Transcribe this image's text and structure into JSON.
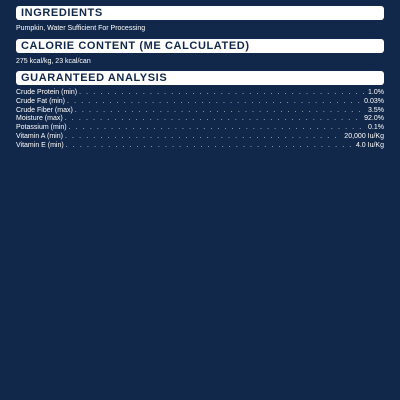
{
  "ingredients": {
    "heading": "INGREDIENTS",
    "text": "Pumpkin, Water Sufficient For Processing"
  },
  "calorie_content": {
    "heading": "CALORIE CONTENT (ME CALCULATED)",
    "text": "275 kcal/kg, 23 kcal/can"
  },
  "guaranteed_analysis": {
    "heading": "GUARANTEED ANALYSIS",
    "rows": [
      {
        "label": "Crude Protein (min)",
        "value": "1.0%"
      },
      {
        "label": "Crude Fat (min)",
        "value": "0.03%"
      },
      {
        "label": "Crude Fiber (max)",
        "value": "3.5%"
      },
      {
        "label": "Moisture (max)",
        "value": "92.0%"
      },
      {
        "label": "Potassium (min)",
        "value": "0.1%"
      },
      {
        "label": "Vitamin A (min)",
        "value": "20,000 Iu/Kg"
      },
      {
        "label": "Vitamin E (min)",
        "value": "4.0 Iu/Kg"
      }
    ]
  },
  "colors": {
    "background": "#12284a",
    "header_background": "#ffffff",
    "header_text": "#12284a",
    "body_text": "#ffffff"
  }
}
